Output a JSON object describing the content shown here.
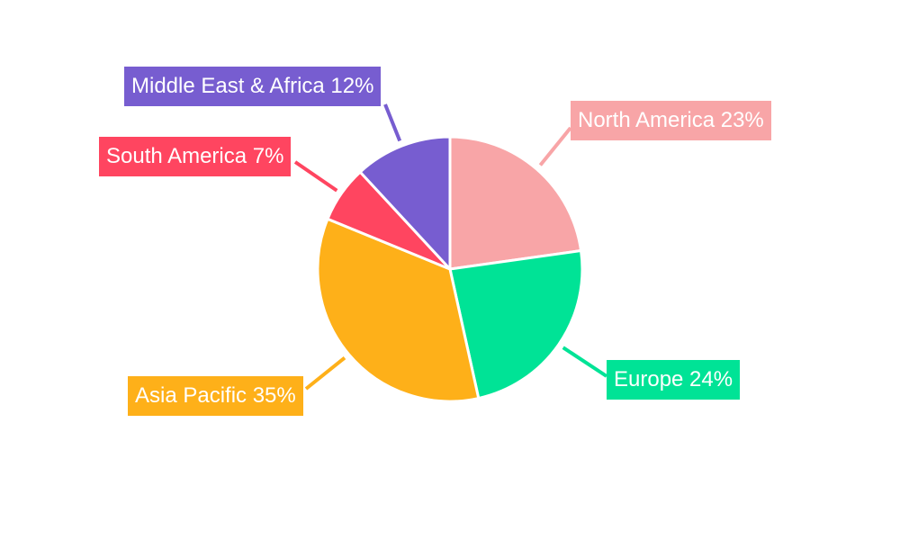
{
  "chart_data": {
    "type": "pie",
    "title": "",
    "categories": [
      "North America",
      "Europe",
      "Asia Pacific",
      "South America",
      "Middle East & Africa"
    ],
    "values": [
      23,
      24,
      35,
      7,
      12
    ],
    "unit": "%",
    "labels": [
      "North America 23%",
      "Europe 24%",
      "Asia Pacific 35%",
      "South America 7%",
      "Middle East & Africa 12%"
    ],
    "colors": [
      "#f8a5a7",
      "#00e396",
      "#feb019",
      "#ff4560",
      "#775dd0"
    ],
    "start_angle": "top, clockwise",
    "legend": "none"
  }
}
